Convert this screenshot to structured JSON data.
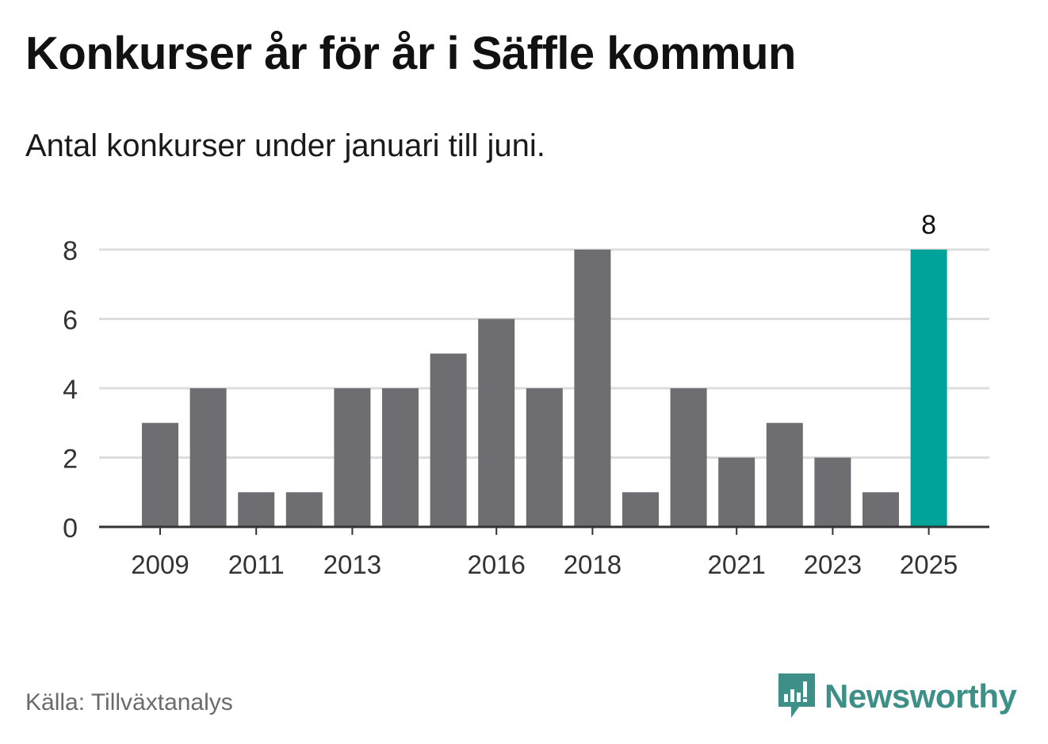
{
  "header": {
    "title": "Konkurser år för år i Säffle kommun",
    "subtitle": "Antal konkurser under januari till juni."
  },
  "footer": {
    "source": "Källa: Tillväxtanalys",
    "brand": "Newsworthy"
  },
  "colors": {
    "bar": "#6e6d72",
    "highlight": "#00a39a",
    "grid": "#dddddd",
    "axis": "#333333",
    "brand": "#3d8f88"
  },
  "chart_data": {
    "type": "bar",
    "categories": [
      "2009",
      "2010",
      "2011",
      "2012",
      "2013",
      "2014",
      "2015",
      "2016",
      "2017",
      "2018",
      "2019",
      "2020",
      "2021",
      "2022",
      "2023",
      "2024",
      "2025"
    ],
    "values": [
      3,
      4,
      1,
      1,
      4,
      4,
      5,
      6,
      4,
      8,
      1,
      4,
      2,
      3,
      2,
      1,
      8
    ],
    "x_tick_labels": [
      "2009",
      "2011",
      "2013",
      "2016",
      "2018",
      "2021",
      "2023",
      "2025"
    ],
    "y_ticks": [
      0,
      2,
      4,
      6,
      8
    ],
    "ylim": [
      0,
      8
    ],
    "highlight_category": "2025",
    "data_labels": [
      {
        "category": "2025",
        "text": "8"
      }
    ],
    "grid": true,
    "legend": "none"
  }
}
